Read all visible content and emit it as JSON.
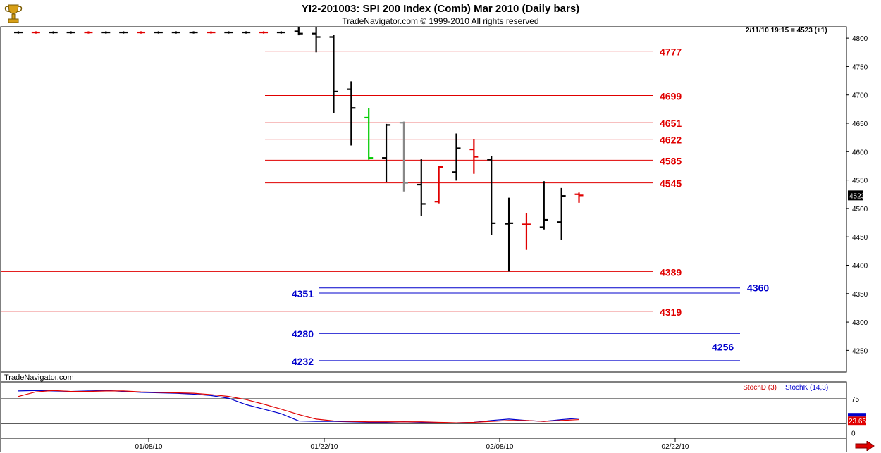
{
  "header": {
    "title": "YI2-201003:  SPI 200 Index (Comb) Mar 2010  (Daily bars)",
    "subtitle": "TradeNavigator.com © 1999-2010 All rights reserved"
  },
  "watermark": "TradeNavigator.com",
  "readout": "2/11/10 19:15 = 4523 (+1)",
  "price_label": "4523",
  "colors": {
    "red": "#e00000",
    "blue": "#0000cc",
    "green": "#00cc00",
    "gray": "#888888",
    "black": "#000000",
    "stochK": "#0000cc",
    "stochD": "#cc0000"
  },
  "chart_data": [
    {
      "type": "bar",
      "ylim": [
        4212,
        4820
      ],
      "yticks": [
        4250,
        4300,
        4350,
        4400,
        4450,
        4500,
        4550,
        4600,
        4650,
        4700,
        4750,
        4800
      ],
      "red_levels": [
        {
          "value": 4777,
          "label": "4777"
        },
        {
          "value": 4699,
          "label": "4699"
        },
        {
          "value": 4651,
          "label": "4651"
        },
        {
          "value": 4622,
          "label": "4622"
        },
        {
          "value": 4585,
          "label": "4585"
        },
        {
          "value": 4545,
          "label": "4545"
        },
        {
          "value": 4389,
          "label": "4389"
        },
        {
          "value": 4319,
          "label": "4319"
        }
      ],
      "blue_levels": [
        {
          "value": 4360,
          "label": "4360",
          "label_side": "right"
        },
        {
          "value": 4351,
          "label": "4351",
          "label_side": "left"
        },
        {
          "value": 4280,
          "label": "4280",
          "label_side": "left"
        },
        {
          "value": 4256,
          "label": "4256",
          "label_side": "right"
        },
        {
          "value": 4232,
          "label": "4232",
          "label_side": "left"
        }
      ],
      "bars": [
        {
          "i": 0,
          "open": 4810,
          "high": 4812,
          "low": 4808,
          "close": 4810,
          "color": "black"
        },
        {
          "i": 1,
          "open": 4810,
          "high": 4812,
          "low": 4808,
          "close": 4810,
          "color": "red"
        },
        {
          "i": 2,
          "open": 4810,
          "high": 4812,
          "low": 4808,
          "close": 4810,
          "color": "black"
        },
        {
          "i": 3,
          "open": 4810,
          "high": 4812,
          "low": 4808,
          "close": 4810,
          "color": "black"
        },
        {
          "i": 4,
          "open": 4810,
          "high": 4812,
          "low": 4808,
          "close": 4810,
          "color": "red"
        },
        {
          "i": 5,
          "open": 4810,
          "high": 4812,
          "low": 4808,
          "close": 4810,
          "color": "black"
        },
        {
          "i": 6,
          "open": 4810,
          "high": 4812,
          "low": 4808,
          "close": 4810,
          "color": "black"
        },
        {
          "i": 7,
          "open": 4810,
          "high": 4812,
          "low": 4808,
          "close": 4810,
          "color": "red"
        },
        {
          "i": 8,
          "open": 4810,
          "high": 4812,
          "low": 4808,
          "close": 4810,
          "color": "black"
        },
        {
          "i": 9,
          "open": 4810,
          "high": 4812,
          "low": 4808,
          "close": 4810,
          "color": "black"
        },
        {
          "i": 10,
          "open": 4810,
          "high": 4812,
          "low": 4808,
          "close": 4810,
          "color": "black"
        },
        {
          "i": 11,
          "open": 4810,
          "high": 4812,
          "low": 4808,
          "close": 4810,
          "color": "red"
        },
        {
          "i": 12,
          "open": 4810,
          "high": 4812,
          "low": 4808,
          "close": 4810,
          "color": "black"
        },
        {
          "i": 13,
          "open": 4810,
          "high": 4812,
          "low": 4808,
          "close": 4810,
          "color": "black"
        },
        {
          "i": 14,
          "open": 4810,
          "high": 4812,
          "low": 4808,
          "close": 4810,
          "color": "red"
        },
        {
          "i": 15,
          "open": 4810,
          "high": 4812,
          "low": 4808,
          "close": 4810,
          "color": "black"
        },
        {
          "i": 16,
          "open": 4812,
          "high": 4820,
          "low": 4805,
          "close": 4808,
          "color": "black"
        },
        {
          "i": 17,
          "open": 4808,
          "high": 4820,
          "low": 4775,
          "close": 4802,
          "color": "black"
        },
        {
          "i": 18,
          "open": 4802,
          "high": 4806,
          "low": 4668,
          "close": 4706,
          "color": "black"
        },
        {
          "i": 19,
          "open": 4710,
          "high": 4724,
          "low": 4611,
          "close": 4677,
          "color": "black"
        },
        {
          "i": 20,
          "open": 4660,
          "high": 4677,
          "low": 4586,
          "close": 4589,
          "color": "green"
        },
        {
          "i": 21,
          "open": 4589,
          "high": 4649,
          "low": 4547,
          "close": 4647,
          "color": "black"
        },
        {
          "i": 22,
          "open": 4651,
          "high": 4653,
          "low": 4530,
          "close": 4545,
          "color": "gray"
        },
        {
          "i": 23,
          "open": 4542,
          "high": 4588,
          "low": 4487,
          "close": 4508,
          "color": "black"
        },
        {
          "i": 24,
          "open": 4512,
          "high": 4575,
          "low": 4509,
          "close": 4573,
          "color": "red"
        },
        {
          "i": 25,
          "open": 4564,
          "high": 4632,
          "low": 4549,
          "close": 4606,
          "color": "black"
        },
        {
          "i": 26,
          "open": 4604,
          "high": 4622,
          "low": 4561,
          "close": 4591,
          "color": "red"
        },
        {
          "i": 27,
          "open": 4586,
          "high": 4592,
          "low": 4453,
          "close": 4474,
          "color": "black"
        },
        {
          "i": 28,
          "open": 4473,
          "high": 4519,
          "low": 4389,
          "close": 4474,
          "color": "black"
        },
        {
          "i": 29,
          "open": 4472,
          "high": 4492,
          "low": 4427,
          "close": 4472,
          "color": "red"
        },
        {
          "i": 30,
          "open": 4467,
          "high": 4548,
          "low": 4463,
          "close": 4480,
          "color": "black"
        },
        {
          "i": 31,
          "open": 4476,
          "high": 4536,
          "low": 4444,
          "close": 4522,
          "color": "black"
        },
        {
          "i": 32,
          "open": 4525,
          "high": 4528,
          "low": 4510,
          "close": 4523,
          "color": "red"
        }
      ],
      "x_ticks": [
        "01/08/10",
        "01/22/10",
        "02/08/10",
        "02/22/10"
      ],
      "last_value": 4523
    },
    {
      "type": "line",
      "ylim": [
        -12,
        112
      ],
      "yticks": [
        0,
        75
      ],
      "legend": [
        "StochD (3)",
        "StochK (14,3)"
      ],
      "last_value_label": "23.65",
      "series": [
        {
          "name": "StochK (14,3)",
          "color": "blue",
          "values": [
            92,
            93,
            92,
            91,
            92,
            93,
            91,
            89,
            88,
            87,
            85,
            82,
            76,
            62,
            52,
            42,
            26,
            25,
            25,
            24,
            23,
            23,
            24,
            23,
            22,
            22,
            23,
            27,
            30,
            27,
            25,
            29,
            32
          ]
        },
        {
          "name": "StochD (3)",
          "color": "red",
          "values": [
            80,
            90,
            93,
            91,
            91,
            92,
            92,
            90,
            89,
            88,
            87,
            84,
            80,
            73,
            63,
            52,
            40,
            30,
            26,
            25,
            24,
            24,
            24,
            24,
            23,
            22,
            23,
            25,
            27,
            27,
            25,
            27,
            29
          ]
        }
      ]
    }
  ]
}
